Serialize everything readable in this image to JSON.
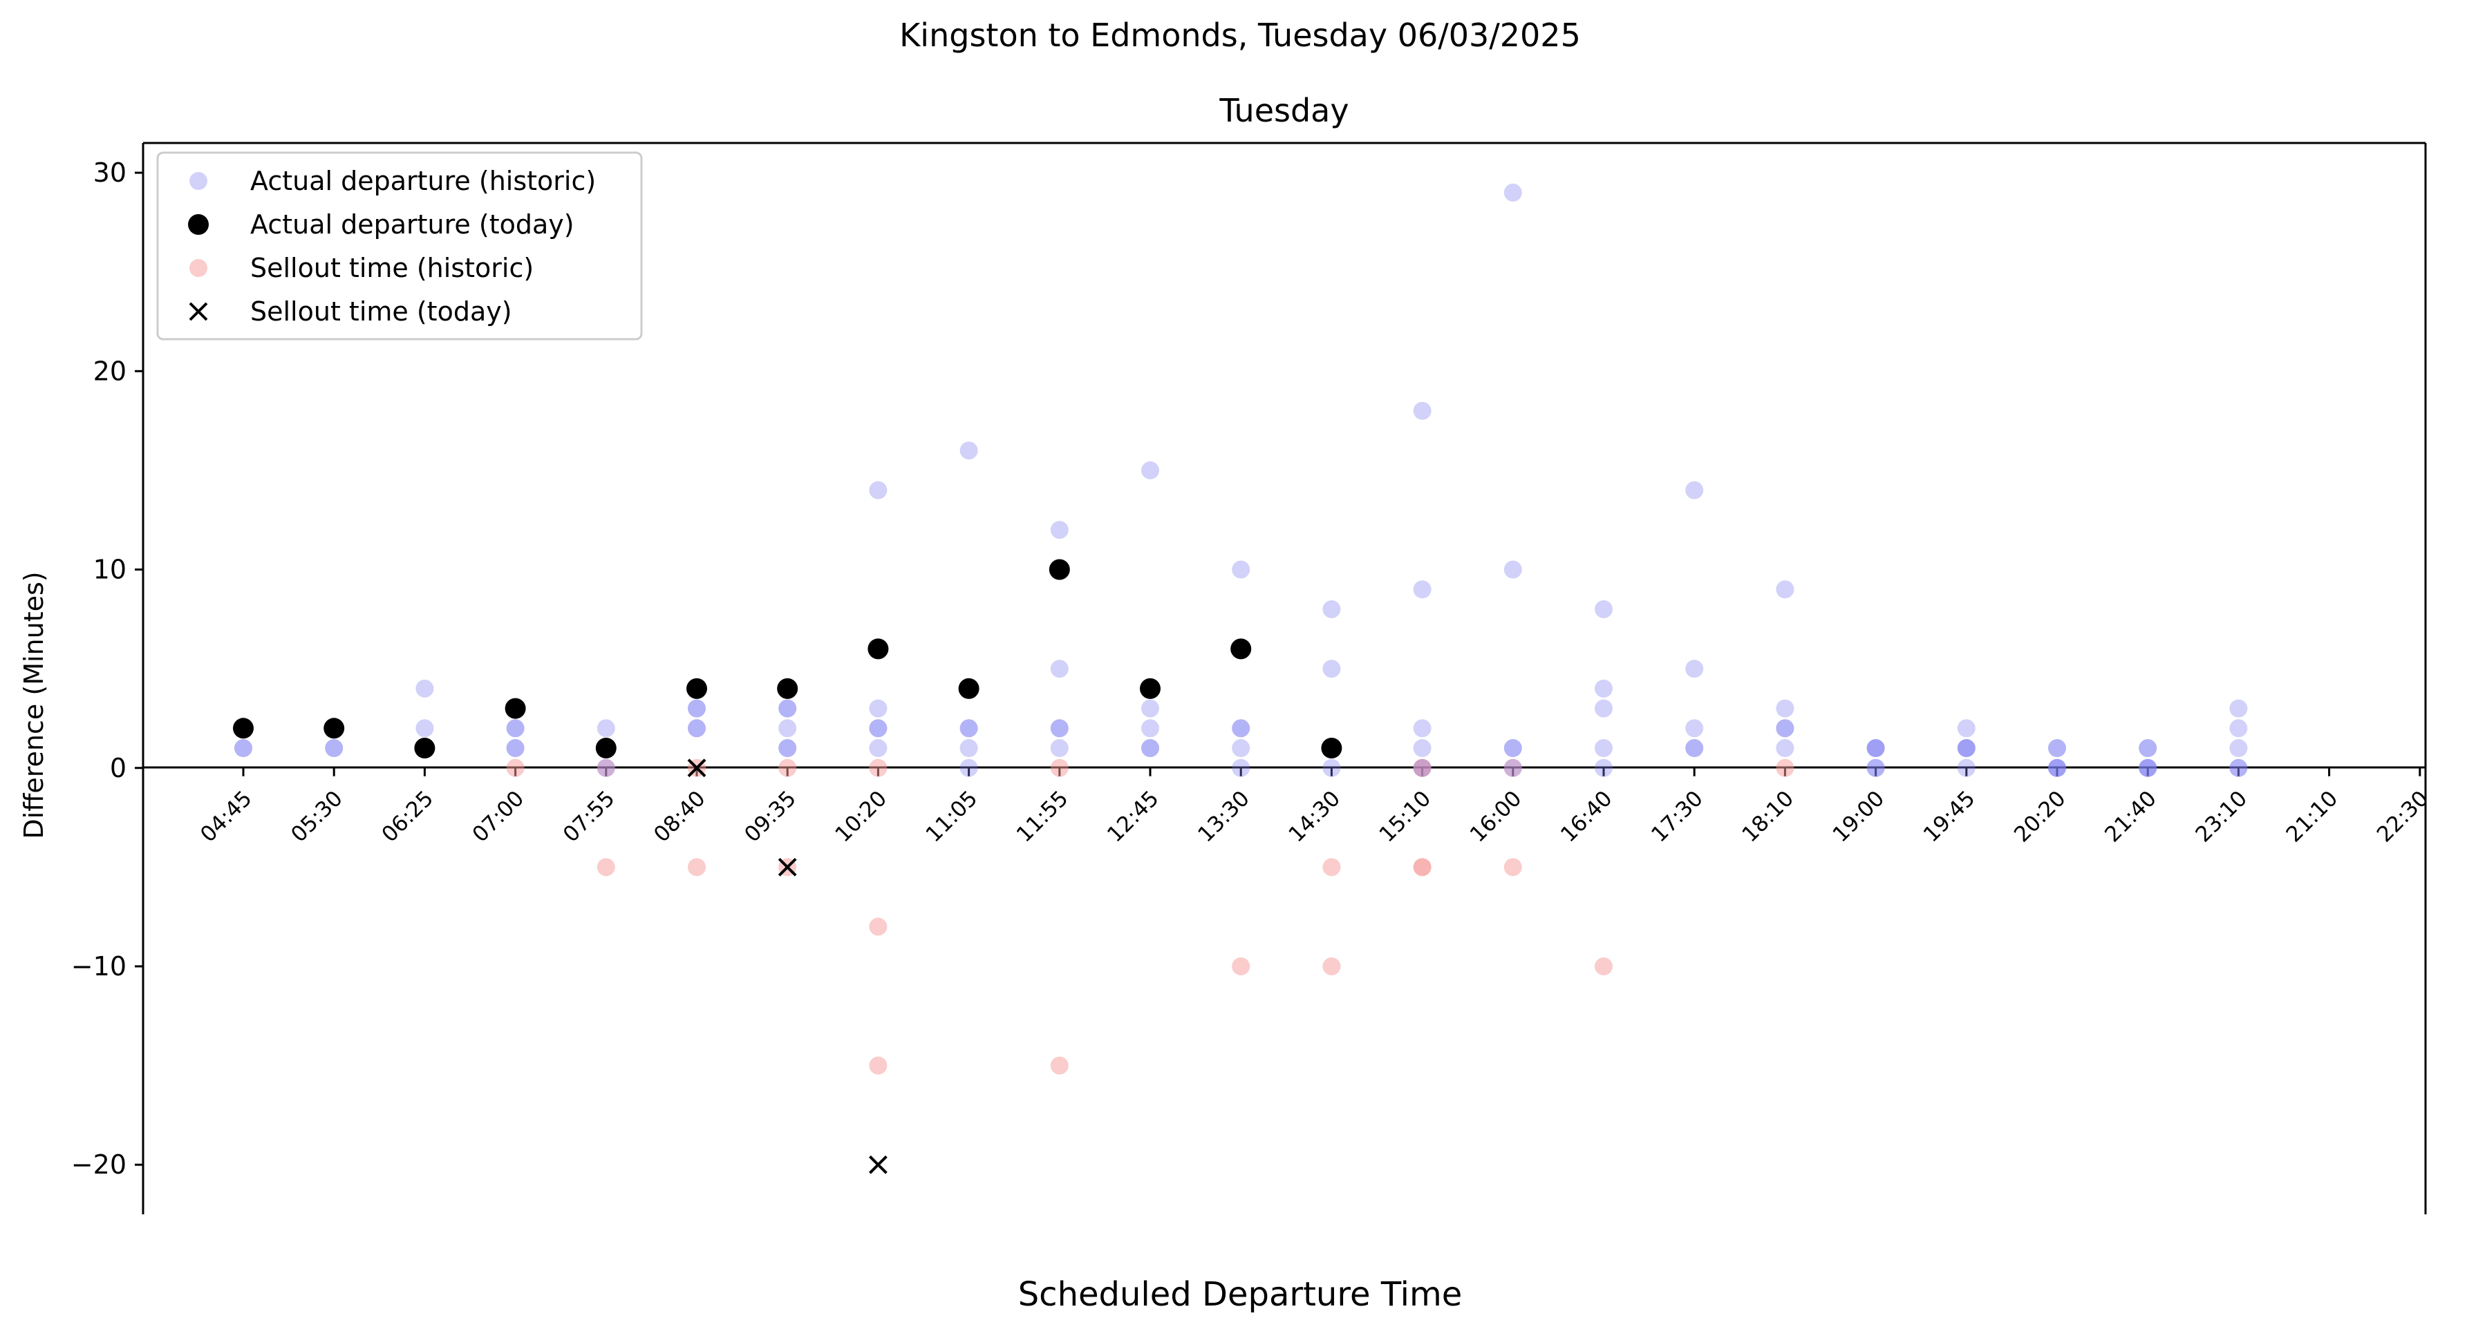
{
  "suptitle": "Kingston to Edmonds, Tuesday 06/03/2025",
  "colors": {
    "historic_departure": "#7b7bf0",
    "today_departure": "#000000",
    "historic_sellout": "#f59a9a",
    "today_sellout": "#000000"
  },
  "chart_data": {
    "type": "scatter",
    "title": "Tuesday",
    "xlabel": "Scheduled Departure Time",
    "ylabel": "Difference (Minutes)",
    "ylim": [
      -22.5,
      31.5
    ],
    "yticks": [
      -20,
      -10,
      0,
      10,
      20,
      30
    ],
    "grid": false,
    "legend_position": "top-left",
    "categories": [
      "04:45",
      "05:30",
      "06:25",
      "07:00",
      "07:55",
      "08:40",
      "09:35",
      "10:20",
      "11:05",
      "11:55",
      "12:45",
      "13:30",
      "14:30",
      "15:10",
      "16:00",
      "16:40",
      "17:30",
      "18:10",
      "19:00",
      "19:45",
      "20:20",
      "21:40",
      "23:10",
      "21:10",
      "22:30"
    ],
    "series": [
      {
        "name": "Actual departure (historic)",
        "marker": "circle-light",
        "points": [
          [
            "04:45",
            1
          ],
          [
            "04:45",
            1
          ],
          [
            "04:45",
            2
          ],
          [
            "05:30",
            1
          ],
          [
            "05:30",
            1
          ],
          [
            "06:25",
            1
          ],
          [
            "06:25",
            2
          ],
          [
            "06:25",
            4
          ],
          [
            "07:00",
            1
          ],
          [
            "07:00",
            2
          ],
          [
            "07:00",
            2
          ],
          [
            "07:00",
            1
          ],
          [
            "07:55",
            1
          ],
          [
            "07:55",
            2
          ],
          [
            "07:55",
            0
          ],
          [
            "08:40",
            2
          ],
          [
            "08:40",
            3
          ],
          [
            "08:40",
            2
          ],
          [
            "08:40",
            3
          ],
          [
            "09:35",
            1
          ],
          [
            "09:35",
            2
          ],
          [
            "09:35",
            3
          ],
          [
            "09:35",
            3
          ],
          [
            "09:35",
            1
          ],
          [
            "10:20",
            1
          ],
          [
            "10:20",
            2
          ],
          [
            "10:20",
            3
          ],
          [
            "10:20",
            14
          ],
          [
            "10:20",
            2
          ],
          [
            "11:05",
            0
          ],
          [
            "11:05",
            1
          ],
          [
            "11:05",
            2
          ],
          [
            "11:05",
            16
          ],
          [
            "11:05",
            2
          ],
          [
            "11:55",
            1
          ],
          [
            "11:55",
            2
          ],
          [
            "11:55",
            5
          ],
          [
            "11:55",
            12
          ],
          [
            "11:55",
            2
          ],
          [
            "12:45",
            1
          ],
          [
            "12:45",
            2
          ],
          [
            "12:45",
            3
          ],
          [
            "12:45",
            15
          ],
          [
            "12:45",
            1
          ],
          [
            "13:30",
            0
          ],
          [
            "13:30",
            1
          ],
          [
            "13:30",
            2
          ],
          [
            "13:30",
            10
          ],
          [
            "13:30",
            2
          ],
          [
            "14:30",
            0
          ],
          [
            "14:30",
            5
          ],
          [
            "14:30",
            8
          ],
          [
            "15:10",
            0
          ],
          [
            "15:10",
            1
          ],
          [
            "15:10",
            2
          ],
          [
            "15:10",
            9
          ],
          [
            "15:10",
            18
          ],
          [
            "16:00",
            0
          ],
          [
            "16:00",
            1
          ],
          [
            "16:00",
            10
          ],
          [
            "16:00",
            29
          ],
          [
            "16:00",
            1
          ],
          [
            "16:40",
            0
          ],
          [
            "16:40",
            1
          ],
          [
            "16:40",
            3
          ],
          [
            "16:40",
            4
          ],
          [
            "16:40",
            8
          ],
          [
            "17:30",
            1
          ],
          [
            "17:30",
            2
          ],
          [
            "17:30",
            5
          ],
          [
            "17:30",
            14
          ],
          [
            "17:30",
            1
          ],
          [
            "18:10",
            1
          ],
          [
            "18:10",
            2
          ],
          [
            "18:10",
            3
          ],
          [
            "18:10",
            9
          ],
          [
            "18:10",
            2
          ],
          [
            "19:00",
            0
          ],
          [
            "19:00",
            1
          ],
          [
            "19:00",
            1
          ],
          [
            "19:00",
            1
          ],
          [
            "19:00",
            0
          ],
          [
            "19:45",
            0
          ],
          [
            "19:45",
            1
          ],
          [
            "19:45",
            2
          ],
          [
            "19:45",
            1
          ],
          [
            "19:45",
            1
          ],
          [
            "20:20",
            0
          ],
          [
            "20:20",
            1
          ],
          [
            "20:20",
            1
          ],
          [
            "20:20",
            0
          ],
          [
            "20:20",
            0
          ],
          [
            "21:40",
            0
          ],
          [
            "21:40",
            1
          ],
          [
            "21:40",
            1
          ],
          [
            "21:40",
            0
          ],
          [
            "21:40",
            0
          ],
          [
            "23:10",
            0
          ],
          [
            "23:10",
            1
          ],
          [
            "23:10",
            2
          ],
          [
            "23:10",
            3
          ],
          [
            "23:10",
            0
          ]
        ]
      },
      {
        "name": "Actual departure (today)",
        "marker": "circle",
        "points": [
          [
            "04:45",
            2
          ],
          [
            "05:30",
            2
          ],
          [
            "06:25",
            1
          ],
          [
            "07:00",
            3
          ],
          [
            "07:55",
            1
          ],
          [
            "08:40",
            4
          ],
          [
            "09:35",
            4
          ],
          [
            "10:20",
            6
          ],
          [
            "11:05",
            4
          ],
          [
            "11:55",
            10
          ],
          [
            "12:45",
            4
          ],
          [
            "13:30",
            6
          ],
          [
            "14:30",
            1
          ]
        ]
      },
      {
        "name": "Sellout time (historic)",
        "marker": "circle-light",
        "points": [
          [
            "07:00",
            0
          ],
          [
            "07:55",
            0
          ],
          [
            "07:55",
            -5
          ],
          [
            "08:40",
            0
          ],
          [
            "08:40",
            -5
          ],
          [
            "09:35",
            0
          ],
          [
            "09:35",
            -5
          ],
          [
            "10:20",
            0
          ],
          [
            "10:20",
            -8
          ],
          [
            "10:20",
            -15
          ],
          [
            "11:55",
            0
          ],
          [
            "11:55",
            -15
          ],
          [
            "13:30",
            -10
          ],
          [
            "14:30",
            -5
          ],
          [
            "14:30",
            -10
          ],
          [
            "15:10",
            0
          ],
          [
            "15:10",
            0
          ],
          [
            "15:10",
            -5
          ],
          [
            "15:10",
            -5
          ],
          [
            "16:00",
            0
          ],
          [
            "16:00",
            -5
          ],
          [
            "16:40",
            -10
          ],
          [
            "18:10",
            0
          ]
        ]
      },
      {
        "name": "Sellout time (today)",
        "marker": "x",
        "points": [
          [
            "08:40",
            0
          ],
          [
            "09:35",
            -5
          ],
          [
            "10:20",
            -20
          ]
        ]
      }
    ]
  }
}
